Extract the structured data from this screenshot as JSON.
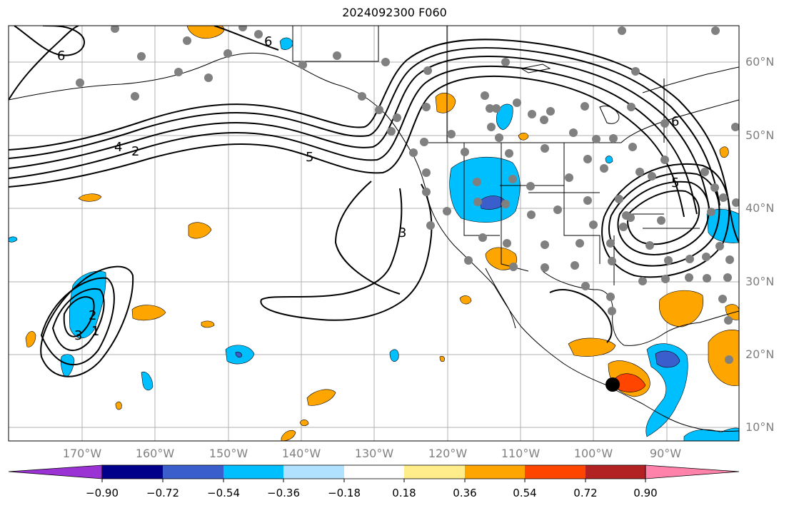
{
  "title": "2024092300 F060",
  "map": {
    "lat_labels": [
      "60°N",
      "50°N",
      "40°N",
      "30°N",
      "20°N",
      "10°N"
    ],
    "lon_labels": [
      "170°W",
      "160°W",
      "150°W",
      "140°W",
      "130°W",
      "120°W",
      "110°W",
      "100°W",
      "90°W"
    ],
    "contour_labels": [
      "6",
      "4",
      "2",
      "5",
      "3",
      "5",
      "3",
      "2",
      "1",
      "6",
      "6"
    ],
    "marker": "storm-center-dot"
  },
  "colorbar": {
    "ticks": [
      "−0.90",
      "−0.72",
      "−0.54",
      "−0.36",
      "−0.18",
      "0.18",
      "0.36",
      "0.54",
      "0.72",
      "0.90"
    ],
    "colors": [
      "#9b32d3",
      "#00008b",
      "#3a5fcd",
      "#00bfff",
      "#b0e2ff",
      "#ffffff",
      "#ffec8b",
      "#ffa500",
      "#ff4500",
      "#b22222",
      "#ff82ab"
    ]
  }
}
